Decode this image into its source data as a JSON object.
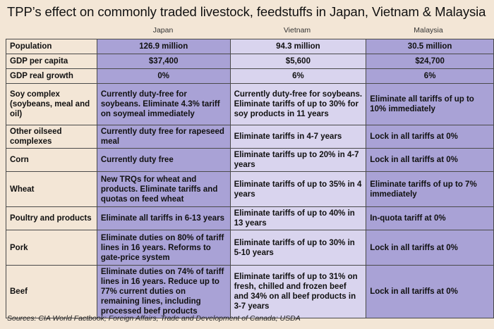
{
  "title": "TPP’s effect on commonly traded livestock, feedstuffs in Japan, Vietnam & Malaysia",
  "columns": [
    "Japan",
    "Vietnam",
    "Malaysia"
  ],
  "rows": [
    {
      "label": "Population",
      "values": [
        "126.9 million",
        "94.3 million",
        "30.5 million"
      ],
      "center": true
    },
    {
      "label": "GDP per capita",
      "values": [
        "$37,400",
        "$5,600",
        "$24,700"
      ],
      "center": true
    },
    {
      "label": "GDP real growth",
      "values": [
        "0%",
        "6%",
        "6%"
      ],
      "center": true
    },
    {
      "label": "Soy complex (soybeans, meal and oil)",
      "values": [
        "Currently duty-free for soybeans. Eliminate 4.3% tariff on soymeal immediately",
        "Currently duty-free for soybeans. Eliminate tariffs of up to 30% for soy products in 11 years",
        "Eliminate all tariffs of up to 10% immediately"
      ],
      "center": false
    },
    {
      "label": "Other oilseed complexes",
      "values": [
        "Currently duty free for rapeseed meal",
        "Eliminate tariffs in 4-7 years",
        "Lock in all tariffs at 0%"
      ],
      "center": false
    },
    {
      "label": "Corn",
      "values": [
        "Currently duty free",
        "Eliminate tariffs up to 20% in 4-7 years",
        "Lock in all tariffs at 0%"
      ],
      "center": false
    },
    {
      "label": "Wheat",
      "values": [
        "New TRQs for wheat and products. Eliminate tariffs and quotas on feed wheat",
        "Eliminate tariffs of up to 35% in 4 years",
        "Eliminate tariffs of up to 7% immediately"
      ],
      "center": false
    },
    {
      "label": "Poultry and products",
      "values": [
        "Eliminate all tariffs in 6-13 years",
        "Eliminate tariffs of up to 40% in 13 years",
        "In-quota tariff at 0%"
      ],
      "center": false
    },
    {
      "label": "Pork",
      "values": [
        "Eliminate duties on 80% of tariff lines in 16 years. Reforms to gate-price system",
        "Eliminate tariffs of up to 30% in 5-10 years",
        "Lock in all tariffs at 0%"
      ],
      "center": false
    },
    {
      "label": "Beef",
      "values": [
        "Eliminate duties on 74% of tariff lines in 16 years. Reduce up to 77% current duties on remaining lines, including processed beef products",
        "Eliminate tariffs of up to 31% on fresh, chilled and frozen beef and 34% on all beef products in 3-7 years",
        "Lock in all tariffs at 0%"
      ],
      "center": false
    }
  ],
  "footer": "Sources: CIA World Factbook; Foreign Affairs, Trade and Development of Canada; USDA",
  "colors": {
    "background": "#f3e6d6",
    "dark_column": "#a9a2d6",
    "light_column": "#d9d4ee"
  }
}
